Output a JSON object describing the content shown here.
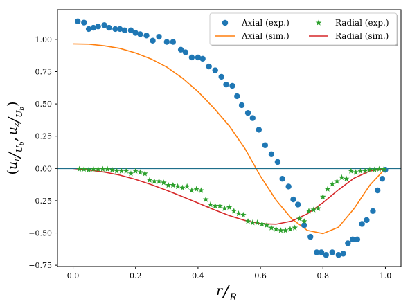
{
  "chart_data": {
    "type": "scatter",
    "xlabel": "r/R",
    "ylabel": "(u_r/U_b, u_z/U_b)",
    "xlabel_parts": {
      "num": "r",
      "den": "R"
    },
    "ylabel_parts": {
      "open": "(",
      "a_num": "u",
      "a_sub": "r",
      "a_den": "U",
      "a_den_sub": "b",
      "sep": ",",
      "b_num": "u",
      "b_sub": "z",
      "b_den": "U",
      "b_den_sub": "b",
      "close": ")"
    },
    "xlim": [
      -0.05,
      1.05
    ],
    "ylim": [
      -0.76,
      1.23
    ],
    "xticks": [
      0.0,
      0.2,
      0.4,
      0.6,
      0.8,
      1.0
    ],
    "xtick_labels": [
      "0.0",
      "0.2",
      "0.4",
      "0.6",
      "0.8",
      "1.0"
    ],
    "yticks": [
      -0.75,
      -0.5,
      -0.25,
      0.0,
      0.25,
      0.5,
      0.75,
      1.0
    ],
    "ytick_labels": [
      "−0.75",
      "−0.50",
      "−0.25",
      "0.00",
      "0.25",
      "0.50",
      "0.75",
      "1.00"
    ],
    "grid": false,
    "legend_position": "top-right",
    "hline": {
      "y": 0.0,
      "color": "#1f6f8b"
    },
    "series": [
      {
        "name": "Axial (exp.)",
        "kind": "scatter",
        "marker": "circle",
        "color": "#1f77b4",
        "x": [
          0.015,
          0.035,
          0.05,
          0.065,
          0.08,
          0.1,
          0.115,
          0.135,
          0.15,
          0.165,
          0.185,
          0.2,
          0.215,
          0.235,
          0.255,
          0.275,
          0.3,
          0.32,
          0.345,
          0.36,
          0.38,
          0.4,
          0.415,
          0.435,
          0.455,
          0.475,
          0.49,
          0.51,
          0.525,
          0.54,
          0.56,
          0.575,
          0.595,
          0.615,
          0.635,
          0.655,
          0.67,
          0.69,
          0.705,
          0.72,
          0.74,
          0.76,
          0.78,
          0.795,
          0.81,
          0.83,
          0.85,
          0.865,
          0.88,
          0.895,
          0.91,
          0.925,
          0.94,
          0.96,
          0.975,
          0.99,
          1.0
        ],
        "y": [
          1.14,
          1.13,
          1.08,
          1.09,
          1.1,
          1.11,
          1.09,
          1.08,
          1.08,
          1.07,
          1.07,
          1.05,
          1.04,
          1.03,
          0.99,
          1.02,
          0.98,
          0.98,
          0.92,
          0.9,
          0.86,
          0.86,
          0.85,
          0.79,
          0.76,
          0.71,
          0.65,
          0.64,
          0.56,
          0.49,
          0.43,
          0.39,
          0.3,
          0.18,
          0.11,
          0.05,
          -0.08,
          -0.14,
          -0.24,
          -0.28,
          -0.44,
          -0.53,
          -0.65,
          -0.65,
          -0.67,
          -0.65,
          -0.67,
          -0.66,
          -0.58,
          -0.55,
          -0.55,
          -0.43,
          -0.4,
          -0.33,
          -0.17,
          -0.08,
          -0.01
        ]
      },
      {
        "name": "Axial (sim.)",
        "kind": "line",
        "color": "#ff7f0e",
        "x": [
          0.0,
          0.05,
          0.1,
          0.15,
          0.2,
          0.25,
          0.3,
          0.35,
          0.4,
          0.45,
          0.5,
          0.55,
          0.6,
          0.65,
          0.7,
          0.75,
          0.8,
          0.85,
          0.9,
          0.95,
          1.0
        ],
        "y": [
          0.965,
          0.963,
          0.95,
          0.93,
          0.895,
          0.848,
          0.785,
          0.7,
          0.595,
          0.47,
          0.33,
          0.155,
          -0.06,
          -0.245,
          -0.39,
          -0.48,
          -0.505,
          -0.455,
          -0.31,
          -0.13,
          0.0
        ]
      },
      {
        "name": "Radial (exp.)",
        "kind": "scatter",
        "marker": "star",
        "color": "#2ca02c",
        "x": [
          0.02,
          0.035,
          0.05,
          0.065,
          0.08,
          0.095,
          0.11,
          0.125,
          0.14,
          0.155,
          0.17,
          0.185,
          0.2,
          0.215,
          0.23,
          0.245,
          0.26,
          0.275,
          0.29,
          0.305,
          0.32,
          0.335,
          0.35,
          0.365,
          0.38,
          0.395,
          0.41,
          0.425,
          0.44,
          0.455,
          0.47,
          0.485,
          0.5,
          0.515,
          0.53,
          0.545,
          0.56,
          0.575,
          0.59,
          0.605,
          0.62,
          0.635,
          0.65,
          0.665,
          0.68,
          0.695,
          0.71,
          0.725,
          0.74,
          0.755,
          0.77,
          0.785,
          0.8,
          0.815,
          0.83,
          0.845,
          0.86,
          0.875,
          0.89,
          0.905,
          0.92,
          0.935,
          0.95,
          0.965,
          0.98,
          0.995
        ],
        "y": [
          -0.005,
          -0.005,
          -0.01,
          -0.005,
          -0.005,
          -0.005,
          -0.005,
          -0.01,
          -0.02,
          -0.02,
          -0.02,
          -0.04,
          -0.02,
          -0.03,
          -0.04,
          -0.09,
          -0.1,
          -0.1,
          -0.11,
          -0.13,
          -0.13,
          -0.14,
          -0.15,
          -0.14,
          -0.17,
          -0.16,
          -0.17,
          -0.24,
          -0.28,
          -0.29,
          -0.29,
          -0.31,
          -0.3,
          -0.33,
          -0.35,
          -0.36,
          -0.41,
          -0.42,
          -0.42,
          -0.43,
          -0.44,
          -0.46,
          -0.47,
          -0.48,
          -0.48,
          -0.47,
          -0.46,
          -0.39,
          -0.41,
          -0.33,
          -0.32,
          -0.31,
          -0.22,
          -0.16,
          -0.12,
          -0.1,
          -0.07,
          -0.08,
          -0.02,
          -0.03,
          -0.02,
          -0.02,
          -0.01,
          -0.01,
          -0.005,
          -0.005
        ]
      },
      {
        "name": "Radial (sim.)",
        "kind": "line",
        "color": "#d62728",
        "x": [
          0.0,
          0.05,
          0.1,
          0.15,
          0.2,
          0.25,
          0.3,
          0.35,
          0.4,
          0.45,
          0.5,
          0.55,
          0.6,
          0.65,
          0.7,
          0.75,
          0.8,
          0.85,
          0.9,
          0.95,
          1.0
        ],
        "y": [
          0.0,
          -0.012,
          -0.028,
          -0.052,
          -0.085,
          -0.125,
          -0.17,
          -0.218,
          -0.268,
          -0.318,
          -0.365,
          -0.403,
          -0.428,
          -0.432,
          -0.408,
          -0.352,
          -0.265,
          -0.165,
          -0.075,
          -0.02,
          0.0
        ]
      }
    ]
  }
}
